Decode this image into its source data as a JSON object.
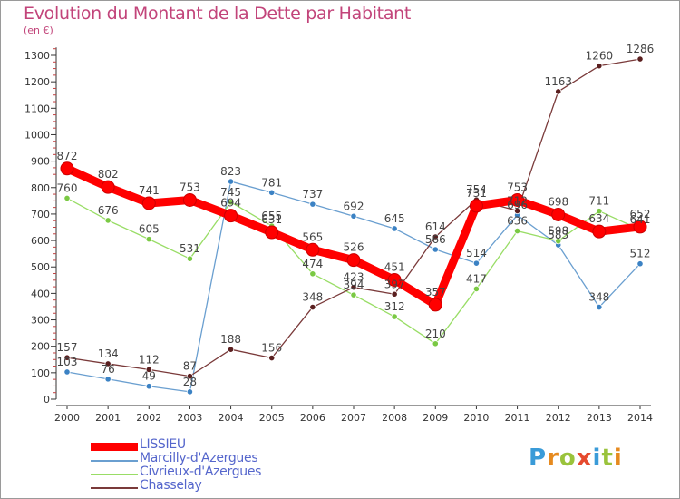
{
  "title": "Evolution du Montant de la Dette par Habitant",
  "unit": "(en €)",
  "brand": {
    "text": "Proxiti",
    "letters": [
      {
        "ch": "P",
        "color": "#3a9bd8"
      },
      {
        "ch": "r",
        "color": "#e68a1f"
      },
      {
        "ch": "o",
        "color": "#9ac33c"
      },
      {
        "ch": "x",
        "color": "#e64a2e"
      },
      {
        "ch": "i",
        "color": "#3a9bd8"
      },
      {
        "ch": "t",
        "color": "#9ac33c"
      },
      {
        "ch": "i",
        "color": "#e68a1f"
      }
    ]
  },
  "chart_data": {
    "type": "line",
    "title": "Evolution du Montant de la Dette par Habitant",
    "ylabel": "(en €)",
    "xlabel": "",
    "x": [
      "2000",
      "2001",
      "2002",
      "2003",
      "2004",
      "2005",
      "2006",
      "2007",
      "2008",
      "2009",
      "2010",
      "2011",
      "2012",
      "2013",
      "2014"
    ],
    "yticks": [
      0,
      100,
      200,
      300,
      400,
      500,
      600,
      700,
      800,
      900,
      1000,
      1100,
      1200,
      1300
    ],
    "ylim": [
      0,
      1330
    ],
    "grid": false,
    "legend_position": "bottom-left",
    "series": [
      {
        "name": "LISSIEU",
        "color": "#ff0000",
        "marker": "#e01010",
        "values": [
          872,
          802,
          741,
          753,
          694,
          631,
          565,
          526,
          451,
          357,
          731,
          753,
          698,
          634,
          652
        ]
      },
      {
        "name": "Marcilly-d'Azergues",
        "color": "#6a9fd0",
        "marker": "#3b82c4",
        "values": [
          103,
          76,
          49,
          28,
          823,
          781,
          737,
          692,
          645,
          566,
          514,
          696,
          583,
          348,
          512
        ]
      },
      {
        "name": "Civrieux-d'Azergues",
        "color": "#99dd66",
        "marker": "#7ac943",
        "values": [
          760,
          676,
          605,
          531,
          745,
          655,
          474,
          394,
          312,
          210,
          417,
          636,
          598,
          711,
          641
        ]
      },
      {
        "name": "Chasselay",
        "color": "#7a3a3a",
        "marker": "#5a1f1f",
        "values": [
          157,
          134,
          112,
          87,
          188,
          156,
          348,
          423,
          397,
          614,
          754,
          712,
          1163,
          1260,
          1286
        ]
      }
    ]
  }
}
